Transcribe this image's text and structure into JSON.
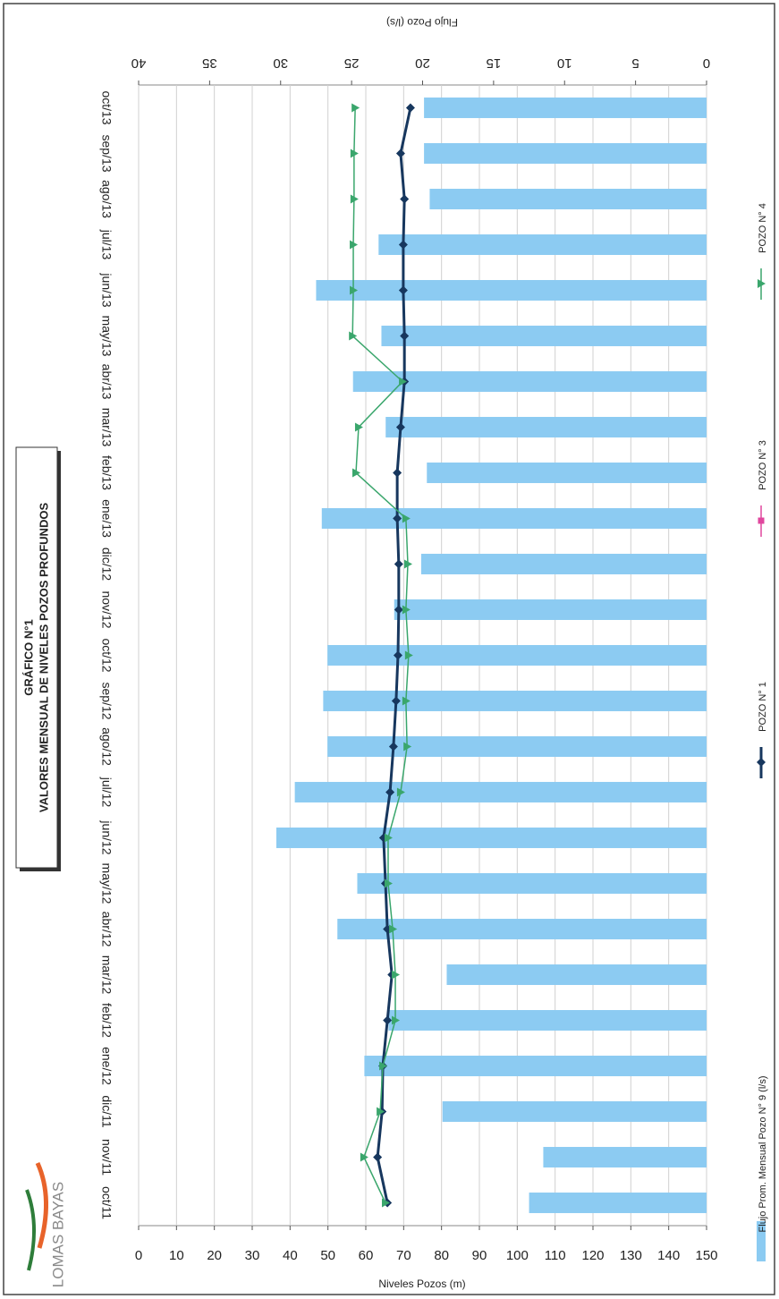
{
  "chart_data": {
    "type": "combo",
    "title": "GRÁFICO N°1",
    "subtitle": "VALORES MENSUAL DE NIVELES POZOS PROFUNDOS",
    "logo_text": "LOMAS BAYAS",
    "y_label": "Niveles Pozos (m)",
    "y2_label": "Flujo Pozo (l/s)",
    "categories": [
      "oct/11",
      "nov/11",
      "dic/11",
      "ene/12",
      "feb/12",
      "mar/12",
      "abr/12",
      "may/12",
      "jun/12",
      "jul/12",
      "ago/12",
      "sep/12",
      "oct/12",
      "nov/12",
      "dic/12",
      "ene/13",
      "feb/13",
      "mar/13",
      "abr/13",
      "may/13",
      "jun/13",
      "jul/13",
      "ago/13",
      "sep/13",
      "oct/13"
    ],
    "ylim": [
      0,
      150
    ],
    "yticks": [
      0,
      10,
      20,
      30,
      40,
      50,
      60,
      70,
      80,
      90,
      100,
      110,
      120,
      130,
      140,
      150
    ],
    "y2lim": [
      0,
      40
    ],
    "y2ticks": [
      0,
      5,
      10,
      15,
      20,
      25,
      30,
      35,
      40
    ],
    "grid": true,
    "series": [
      {
        "name": "Flujo Prom. Mensual Pozo N° 9 (l/s)",
        "kind": "bar",
        "axis": "y2",
        "color": "#8ccbf2",
        "values": [
          12.5,
          11.5,
          18.6,
          24.1,
          22.4,
          18.3,
          26.0,
          24.6,
          30.3,
          29.0,
          26.7,
          27.0,
          26.7,
          22.0,
          20.1,
          27.1,
          19.7,
          22.6,
          24.9,
          22.9,
          27.5,
          23.1,
          19.5,
          19.9,
          19.9
        ]
      },
      {
        "name": "POZO N° 1",
        "kind": "line",
        "marker": "diamond",
        "color": "#17375e",
        "values": [
          65.7,
          63.1,
          64.3,
          64.5,
          65.7,
          66.9,
          65.7,
          65.2,
          64.7,
          66.4,
          67.3,
          68.0,
          68.5,
          68.7,
          68.7,
          68.3,
          68.3,
          69.2,
          70.2,
          70.2,
          69.9,
          69.9,
          70.2,
          69.2,
          71.8
        ]
      },
      {
        "name": "POZO N° 3",
        "kind": "line",
        "marker": "square",
        "color": "#e0479e",
        "values": [
          null,
          null,
          null,
          null,
          null,
          null,
          null,
          null,
          null,
          null,
          null,
          null,
          null,
          null,
          null,
          null,
          null,
          null,
          null,
          null,
          null,
          null,
          null,
          null,
          null
        ]
      },
      {
        "name": "POZO N° 4",
        "kind": "line",
        "marker": "triangle",
        "color": "#3aa66c",
        "values": [
          65.2,
          59.5,
          63.8,
          64.5,
          67.8,
          67.8,
          67.1,
          65.9,
          65.9,
          69.2,
          70.9,
          70.6,
          71.3,
          70.6,
          71.1,
          70.6,
          57.4,
          58.1,
          69.7,
          56.5,
          56.7,
          56.7,
          56.9,
          56.9,
          57.2
        ]
      }
    ]
  }
}
